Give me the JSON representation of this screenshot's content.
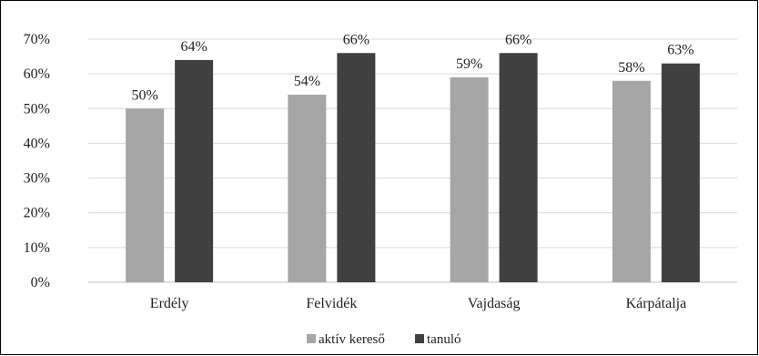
{
  "chart_data": {
    "type": "bar",
    "title": "",
    "xlabel": "",
    "ylabel": "",
    "categories": [
      "Erdély",
      "Felvidék",
      "Vajdaság",
      "Kárpátalja"
    ],
    "series": [
      {
        "name": "aktív kereső",
        "values": [
          50,
          54,
          59,
          58
        ],
        "labels": [
          "50%",
          "54%",
          "59%",
          "58%"
        ],
        "color": "#a6a6a6"
      },
      {
        "name": "tanuló",
        "values": [
          64,
          66,
          66,
          63
        ],
        "labels": [
          "64%",
          "66%",
          "66%",
          "63%"
        ],
        "color": "#404040"
      }
    ],
    "ylim": [
      0,
      70
    ],
    "yticks": [
      0,
      10,
      20,
      30,
      40,
      50,
      60,
      70
    ],
    "ytick_labels": [
      "0%",
      "10%",
      "20%",
      "30%",
      "40%",
      "50%",
      "60%",
      "70%"
    ],
    "grid": true,
    "legend_position": "bottom"
  }
}
